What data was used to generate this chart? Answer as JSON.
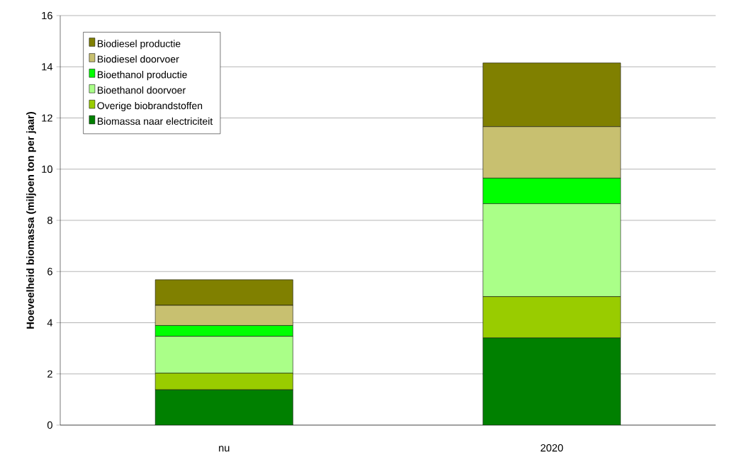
{
  "chart_data": {
    "type": "bar",
    "stacked": true,
    "ylabel": "Hoeveelheid biomassa (miljoen ton per jaar)",
    "categories": [
      "nu",
      "2020"
    ],
    "series": [
      {
        "name": "Biomassa naar electriciteit",
        "color": "#008000",
        "values": [
          1.38,
          3.41
        ]
      },
      {
        "name": "Overige biobrandstoffen",
        "color": "#99cc00",
        "values": [
          0.65,
          1.61
        ]
      },
      {
        "name": "Bioethanol doorvoer",
        "color": "#aaff88",
        "values": [
          1.44,
          3.63
        ]
      },
      {
        "name": "Bioethanol productie",
        "color": "#00ff00",
        "values": [
          0.42,
          1.0
        ]
      },
      {
        "name": "Biodiesel doorvoer",
        "color": "#c8c070",
        "values": [
          0.79,
          2.01
        ]
      },
      {
        "name": "Biodiesel productie",
        "color": "#808000",
        "values": [
          1.0,
          2.49
        ]
      }
    ],
    "ylim": [
      0,
      16
    ],
    "yticks": [
      0,
      2,
      4,
      6,
      8,
      10,
      12,
      14,
      16
    ],
    "grid": "y",
    "legend": "top left"
  }
}
